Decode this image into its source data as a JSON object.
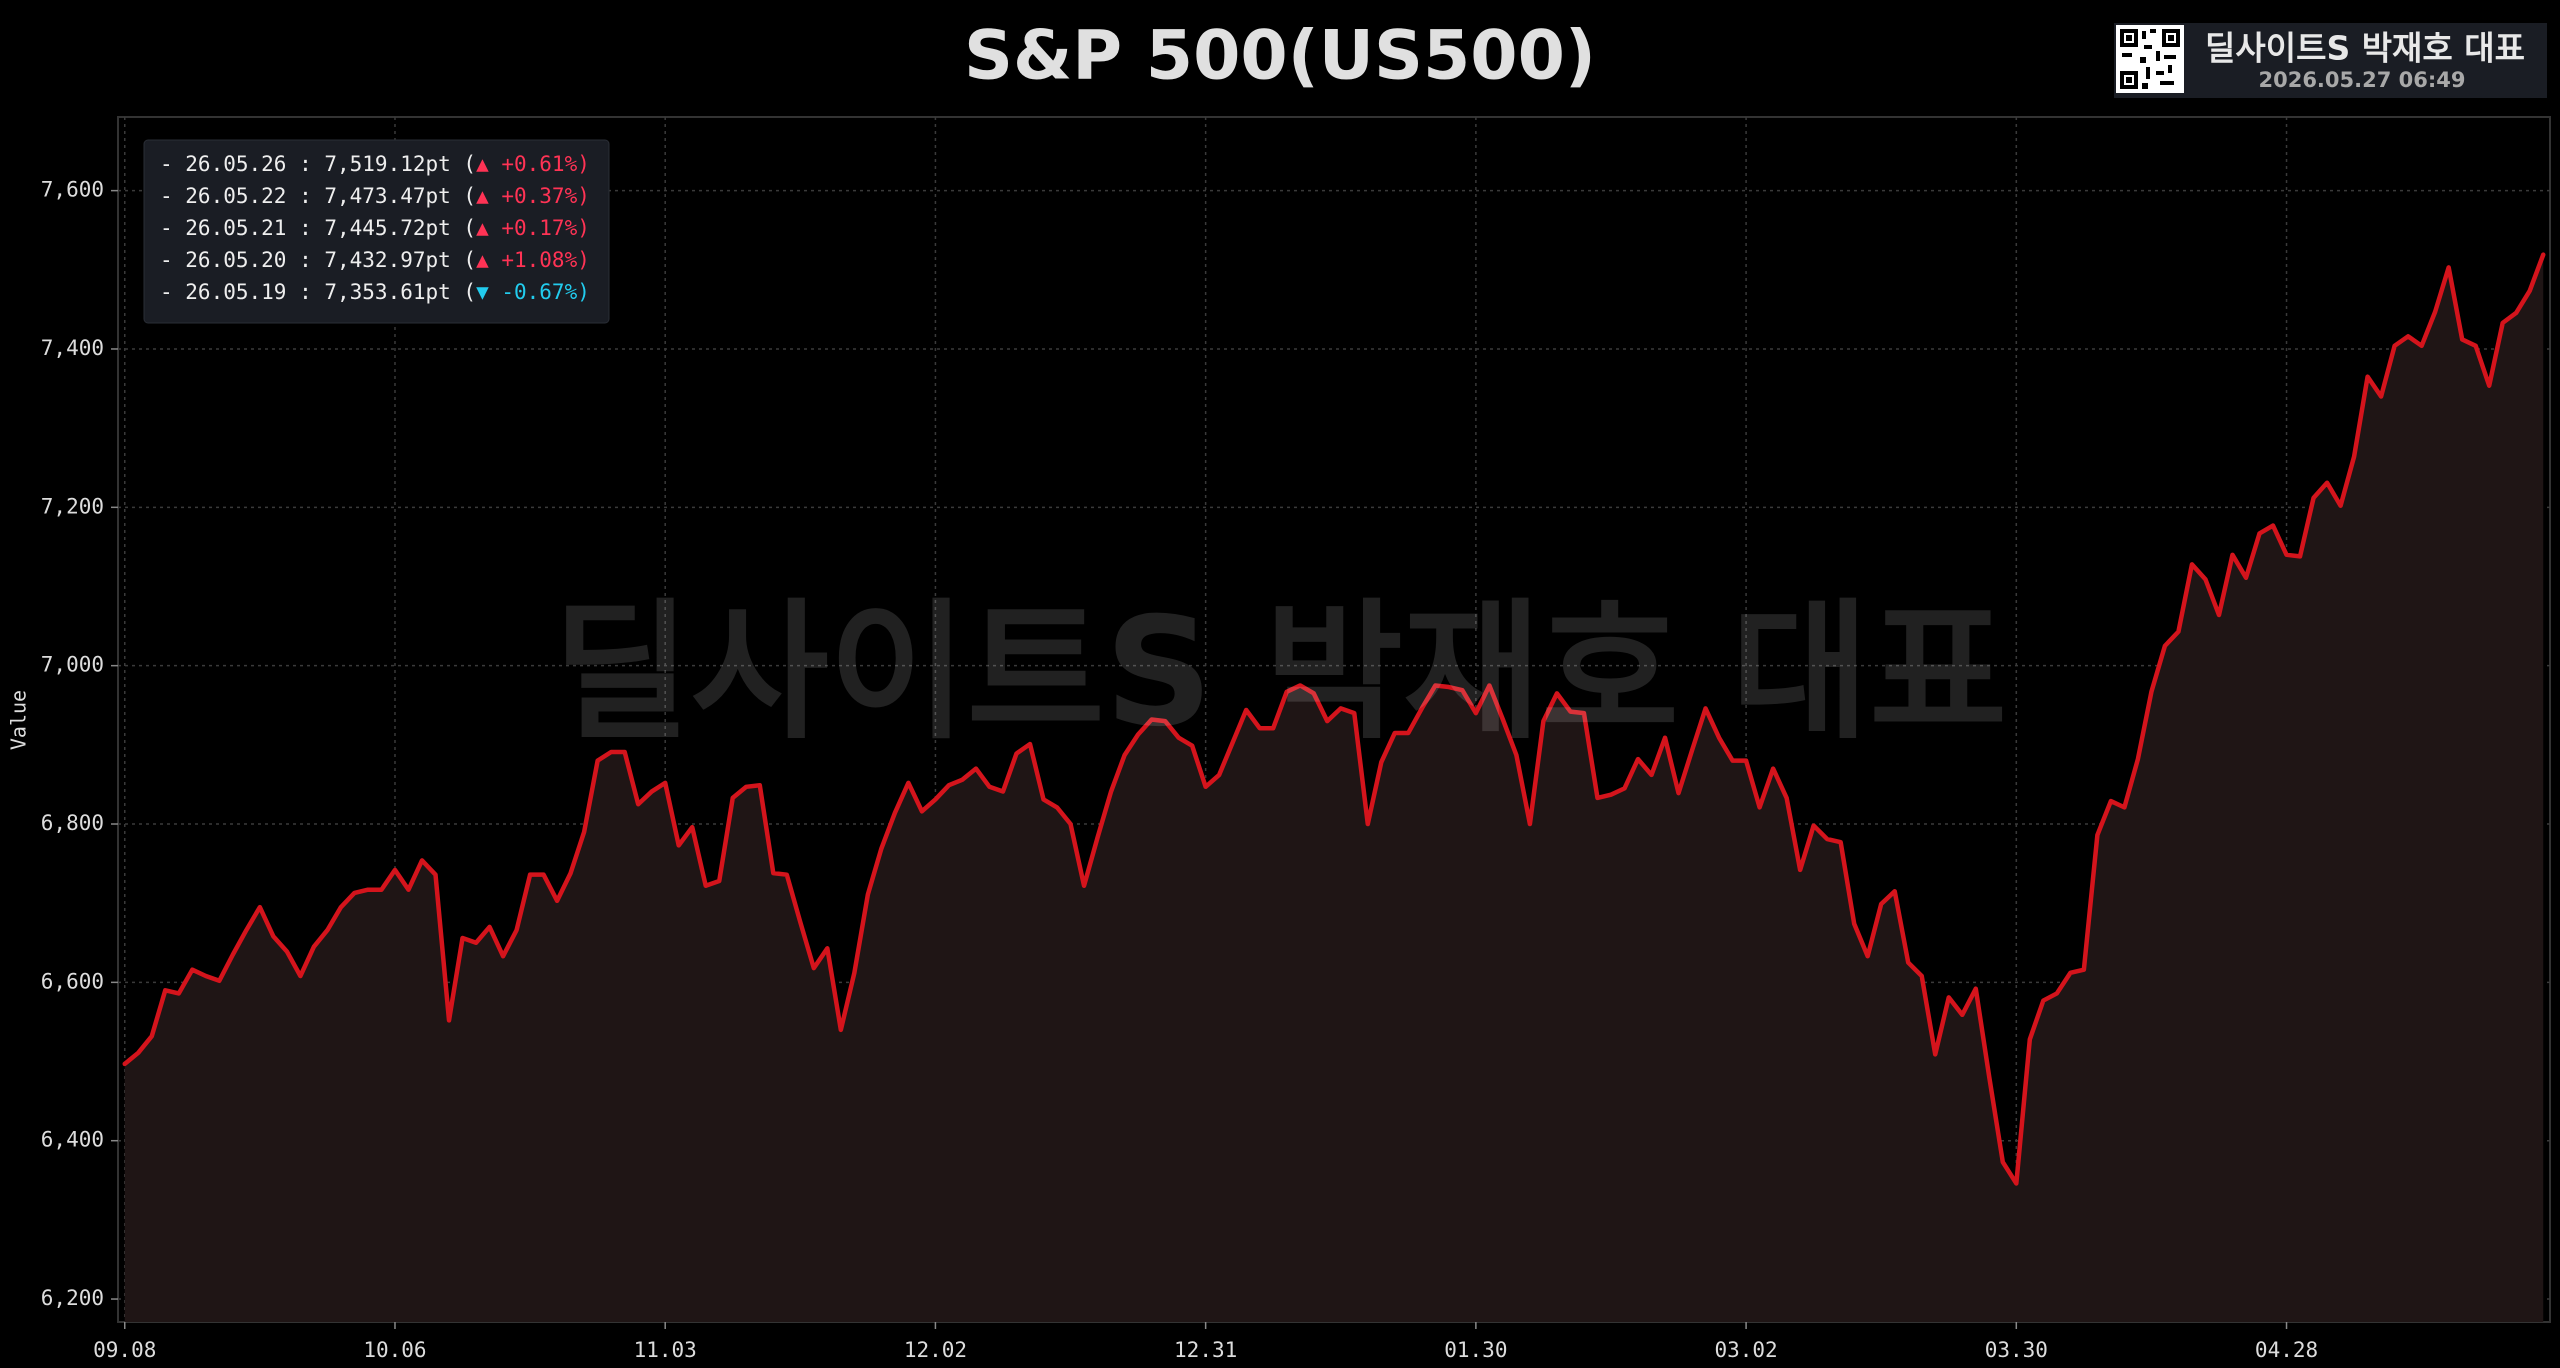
{
  "chart_data": {
    "type": "line",
    "title": "S&P 500(US500)",
    "watermark": "딜사이트S 박재호 대표",
    "brand": {
      "name": "딜사이트S 박재호 대표",
      "timestamp": "2026.05.27 06:49"
    },
    "y_label": "Value",
    "categories": [
      "09.08",
      null,
      null,
      null,
      null,
      null,
      null,
      null,
      null,
      null,
      null,
      null,
      null,
      null,
      null,
      null,
      null,
      null,
      null,
      null,
      "10.06",
      null,
      null,
      null,
      null,
      null,
      null,
      null,
      null,
      null,
      null,
      null,
      null,
      null,
      null,
      null,
      null,
      null,
      null,
      null,
      "11.03",
      null,
      null,
      null,
      null,
      null,
      null,
      null,
      null,
      null,
      null,
      null,
      null,
      null,
      null,
      null,
      null,
      null,
      null,
      null,
      "12.02",
      null,
      null,
      null,
      null,
      null,
      null,
      null,
      null,
      null,
      null,
      null,
      null,
      null,
      null,
      null,
      null,
      null,
      null,
      null,
      "12.31",
      null,
      null,
      null,
      null,
      null,
      null,
      null,
      null,
      null,
      null,
      null,
      null,
      null,
      null,
      null,
      null,
      null,
      null,
      null,
      "01.30",
      null,
      null,
      null,
      null,
      null,
      null,
      null,
      null,
      null,
      null,
      null,
      null,
      null,
      null,
      null,
      null,
      null,
      null,
      null,
      "03.02",
      null,
      null,
      null,
      null,
      null,
      null,
      null,
      null,
      null,
      null,
      null,
      null,
      null,
      null,
      null,
      null,
      null,
      null,
      null,
      "03.30",
      null,
      null,
      null,
      null,
      null,
      null,
      null,
      null,
      null,
      null,
      null,
      null,
      null,
      null,
      null,
      null,
      null,
      null,
      null,
      "04.28",
      null,
      null,
      null,
      null,
      null,
      null,
      null,
      null,
      null,
      null,
      null,
      null,
      null,
      null,
      null,
      null,
      null,
      null,
      null
    ],
    "values": [
      6497,
      6511,
      6532,
      6590,
      6586,
      6616,
      6608,
      6602,
      6635,
      6666,
      6695,
      6658,
      6639,
      6608,
      6645,
      6666,
      6695,
      6713,
      6717,
      6717,
      6742,
      6717,
      6754,
      6736,
      6552,
      6656,
      6650,
      6670,
      6633,
      6666,
      6736,
      6736,
      6703,
      6738,
      6790,
      6880,
      6891,
      6891,
      6825,
      6841,
      6852,
      6773,
      6796,
      6722,
      6728,
      6833,
      6847,
      6849,
      6738,
      6736,
      6676,
      6618,
      6643,
      6540,
      6612,
      6711,
      6769,
      6814,
      6852,
      6816,
      6831,
      6849,
      6856,
      6870,
      6847,
      6841,
      6889,
      6901,
      6831,
      6821,
      6800,
      6722,
      6783,
      6841,
      6887,
      6913,
      6932,
      6930,
      6909,
      6899,
      6847,
      6862,
      6903,
      6944,
      6921,
      6921,
      6967,
      6975,
      6965,
      6930,
      6946,
      6940,
      6800,
      6878,
      6915,
      6915,
      6946,
      6975,
      6973,
      6969,
      6940,
      6975,
      6932,
      6887,
      6800,
      6930,
      6965,
      6942,
      6940,
      6833,
      6837,
      6845,
      6882,
      6862,
      6909,
      6839,
      6893,
      6946,
      6909,
      6880,
      6880,
      6821,
      6870,
      6833,
      6742,
      6798,
      6781,
      6777,
      6674,
      6633,
      6699,
      6715,
      6625,
      6608,
      6509,
      6581,
      6559,
      6592,
      6480,
      6373,
      6346,
      6528,
      6577,
      6586,
      6612,
      6616,
      6786,
      6829,
      6821,
      6882,
      6967,
      7025,
      7043,
      7128,
      7109,
      7064,
      7140,
      7111,
      7167,
      7177,
      7140,
      7138,
      7212,
      7231,
      7202,
      7264,
      7365,
      7340,
      7404,
      7416,
      7404,
      7447,
      7503,
      7412,
      7404,
      7353.61,
      7432.97,
      7445.72,
      7473.47,
      7519.12
    ],
    "color": "#d4141c",
    "area_color": "#1f1515",
    "ylim": [
      6171,
      7693
    ],
    "yticks": [
      {
        "value": 6200,
        "label": "6,200"
      },
      {
        "value": 6400,
        "label": "6,400"
      },
      {
        "value": 6600,
        "label": "6,600"
      },
      {
        "value": 6800,
        "label": "6,800"
      },
      {
        "value": 7000,
        "label": "7,000"
      },
      {
        "value": 7200,
        "label": "7,200"
      },
      {
        "value": 7400,
        "label": "7,400"
      },
      {
        "value": 7600,
        "label": "7,600"
      }
    ],
    "grid": true,
    "legend_position": "upper left",
    "up_color": "#ff3355",
    "down_color": "#22ccee",
    "annotations": [
      {
        "text": "- 26.05.26 : 7,519.12pt (",
        "change": "▲ +0.61%)",
        "direction": "up"
      },
      {
        "text": "- 26.05.22 : 7,473.47pt (",
        "change": "▲ +0.37%)",
        "direction": "up"
      },
      {
        "text": "- 26.05.21 : 7,445.72pt (",
        "change": "▲ +0.17%)",
        "direction": "up"
      },
      {
        "text": "- 26.05.20 : 7,432.97pt (",
        "change": "▲ +1.08%)",
        "direction": "up"
      },
      {
        "text": "- 26.05.19 : 7,353.61pt (",
        "change": "▼ -0.67%)",
        "direction": "down"
      }
    ]
  }
}
